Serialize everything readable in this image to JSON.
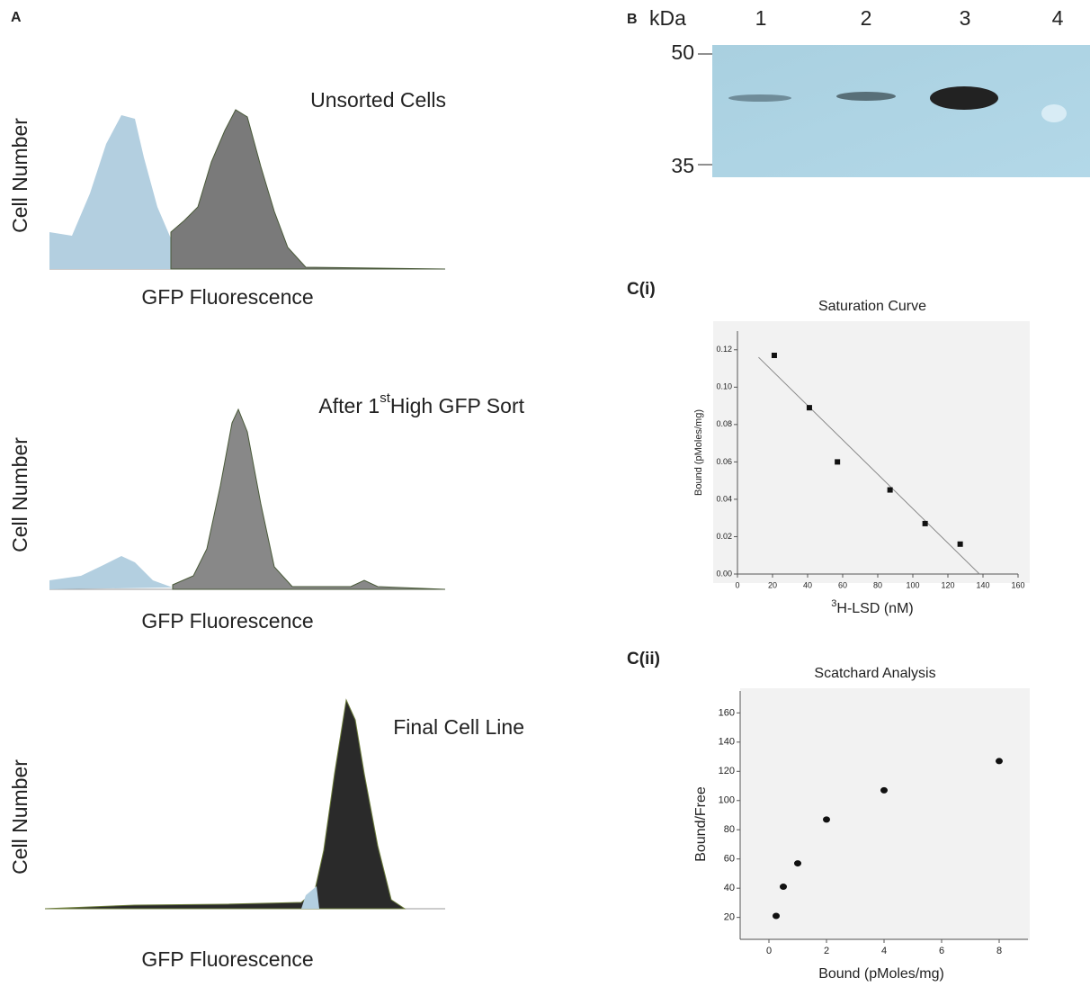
{
  "panel_a": {
    "label": "A",
    "histograms": [
      {
        "title": "Unsorted Cells",
        "ylabel": "Cell Number",
        "xlabel": "GFP Fluorescence"
      },
      {
        "title_before": "After 1",
        "title_sup": "st",
        "title_after": "High GFP Sort",
        "ylabel": "Cell Number",
        "xlabel": "GFP Fluorescence"
      },
      {
        "title": "Final Cell Line",
        "ylabel": "Cell Number",
        "xlabel": "GFP Fluorescence"
      }
    ]
  },
  "panel_b": {
    "label": "B",
    "unit": "kDa",
    "lanes": [
      "1",
      "2",
      "3",
      "4"
    ],
    "markers": [
      "50",
      "35"
    ]
  },
  "chart_data": [
    {
      "type": "scatter",
      "panel_label": "C(i)",
      "title": "Saturation Curve",
      "xlabel_superscript": "3",
      "xlabel": "H-LSD (nM)",
      "ylabel": "Bound (pMoles/mg)",
      "x": [
        21,
        41,
        57,
        87,
        107,
        127
      ],
      "values": [
        0.117,
        0.089,
        0.06,
        0.045,
        0.027,
        0.016
      ],
      "fit_line": {
        "x": [
          12,
          138
        ],
        "y": [
          0.116,
          0
        ]
      },
      "color": "#111111",
      "marker": "square",
      "xlim": [
        0,
        160
      ],
      "xticks": [
        0,
        20,
        40,
        60,
        80,
        100,
        120,
        140,
        160
      ],
      "ylim": [
        0,
        0.13
      ],
      "yticks": [
        {
          "value": 0,
          "label": "0.00"
        },
        {
          "value": 0.02,
          "label": "0.02"
        },
        {
          "value": 0.04,
          "label": "0.04"
        },
        {
          "value": 0.06,
          "label": "0.06"
        },
        {
          "value": 0.08,
          "label": "0.08"
        },
        {
          "value": 0.1,
          "label": "0.10"
        },
        {
          "value": 0.12,
          "label": "0.12"
        }
      ]
    },
    {
      "type": "scatter",
      "panel_label": "C(ii)",
      "title": "Scatchard Analysis",
      "xlabel": "Bound (pMoles/mg)",
      "ylabel": "Bound/Free",
      "x": [
        0.25,
        0.5,
        1,
        2,
        4,
        8
      ],
      "values": [
        21,
        41,
        57,
        87,
        107,
        127
      ],
      "color": "#111111",
      "marker": "circle",
      "xlim": [
        -1,
        9
      ],
      "xticks": [
        0,
        2,
        4,
        6,
        8
      ],
      "ylim": [
        5,
        175
      ],
      "yticks": [
        20,
        40,
        60,
        80,
        100,
        120,
        140,
        160
      ]
    }
  ]
}
